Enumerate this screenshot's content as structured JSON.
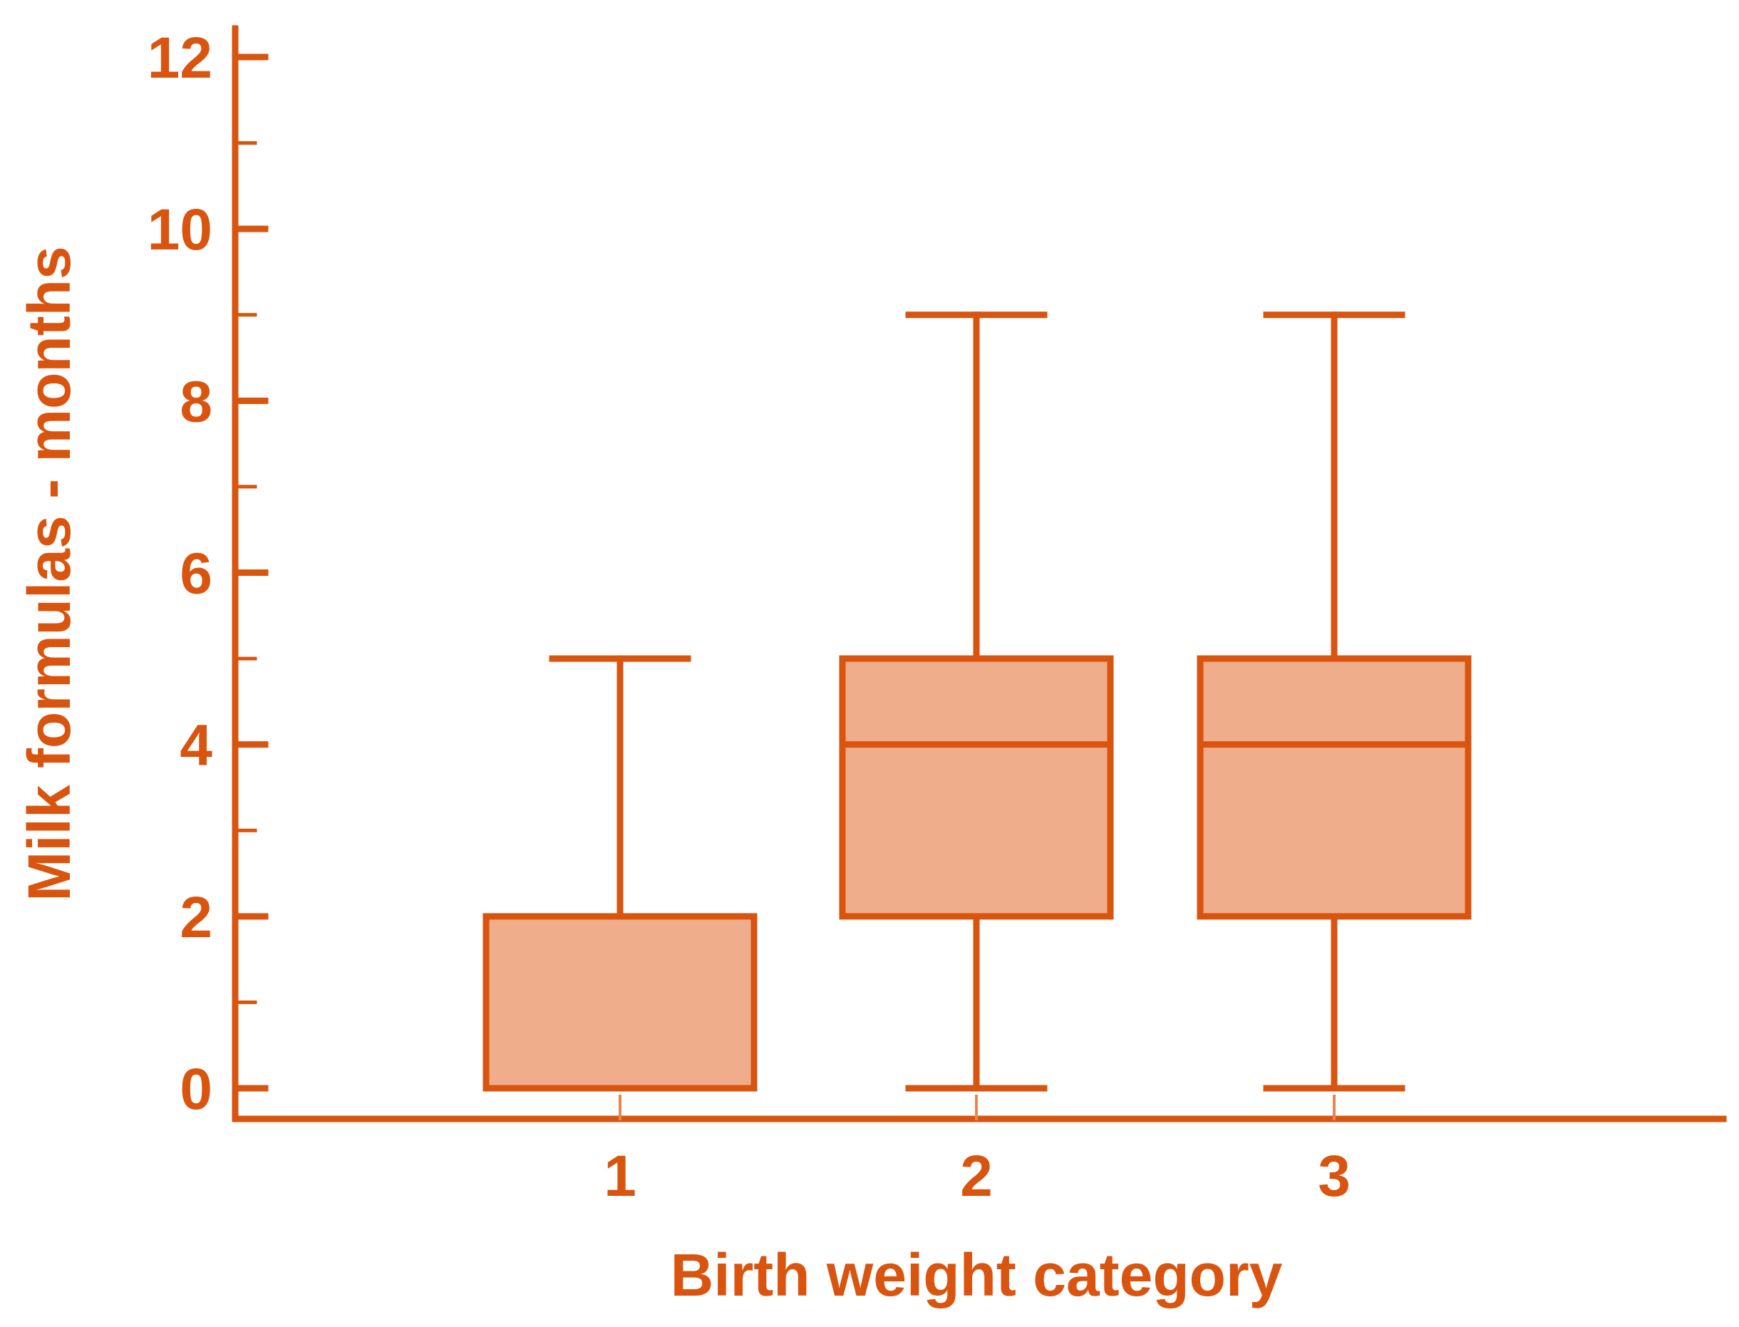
{
  "chart_data": {
    "type": "box",
    "title": "",
    "xlabel": "Birth weight category",
    "ylabel": "Milk formulas - months",
    "categories": [
      "1",
      "2",
      "3"
    ],
    "ylim": [
      0,
      12
    ],
    "yticks": [
      0,
      2,
      4,
      6,
      8,
      10,
      12
    ],
    "ytick_labels": [
      "0",
      "2",
      "4",
      "6",
      "8",
      "10",
      "12"
    ],
    "minor_ytick_step": 1,
    "grid": false,
    "boxes": [
      {
        "category": "1",
        "whisker_low": 0,
        "q1": 0,
        "median": 0,
        "q3": 2,
        "whisker_high": 5
      },
      {
        "category": "2",
        "whisker_low": 0,
        "q1": 2,
        "median": 4,
        "q3": 5,
        "whisker_high": 9
      },
      {
        "category": "3",
        "whisker_low": 0,
        "q1": 2,
        "median": 4,
        "q3": 5,
        "whisker_high": 9
      }
    ],
    "colors": {
      "line": "#d9540f",
      "box_fill": "#f0ad8b",
      "background": "#ffffff"
    }
  }
}
